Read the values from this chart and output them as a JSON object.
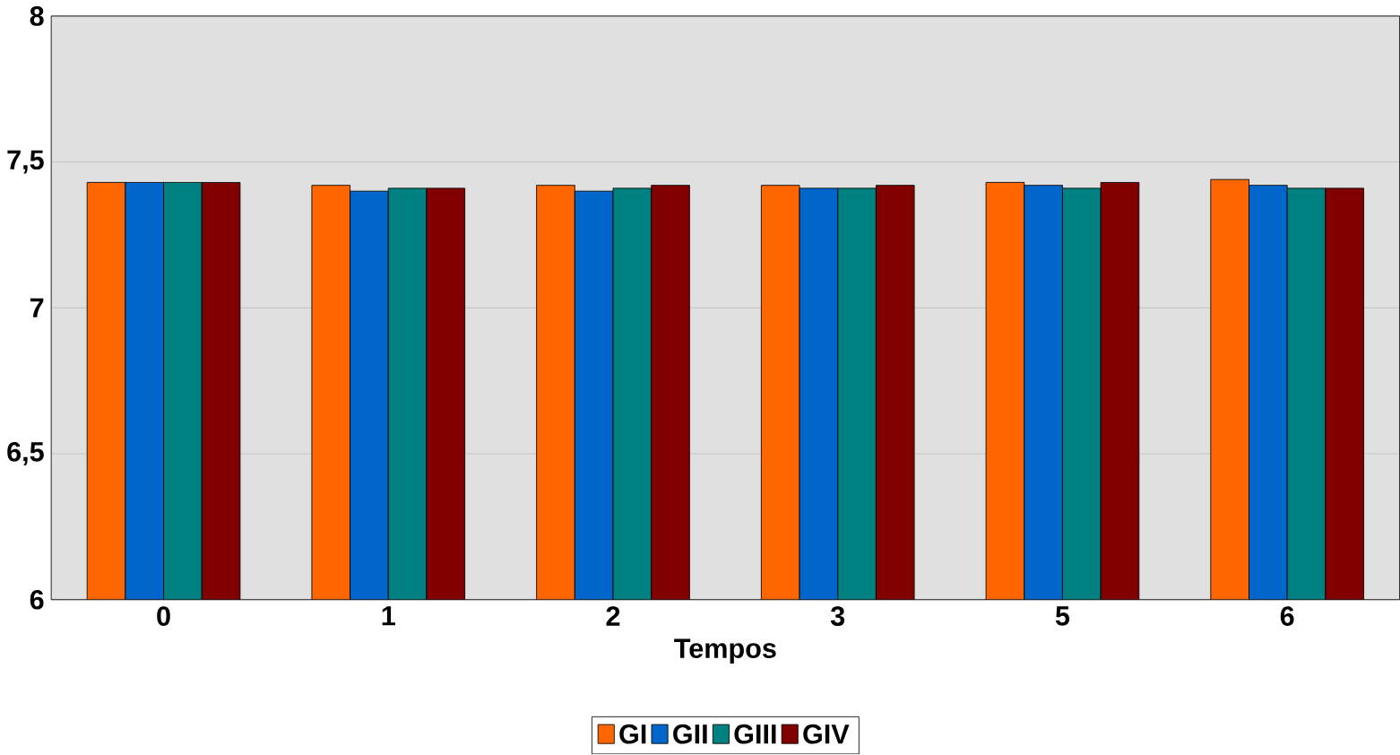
{
  "chart_data": {
    "type": "bar",
    "xlabel": "Tempos",
    "categories": [
      "0",
      "1",
      "2",
      "3",
      "5",
      "6"
    ],
    "series": [
      {
        "name": "GI",
        "color": "#ff6600",
        "values": [
          7.43,
          7.42,
          7.42,
          7.42,
          7.43,
          7.44
        ]
      },
      {
        "name": "GII",
        "color": "#0066cc",
        "values": [
          7.43,
          7.4,
          7.4,
          7.41,
          7.42,
          7.42
        ]
      },
      {
        "name": "GIII",
        "color": "#008080",
        "values": [
          7.43,
          7.41,
          7.41,
          7.41,
          7.41,
          7.41
        ]
      },
      {
        "name": "GIV",
        "color": "#800000",
        "values": [
          7.43,
          7.41,
          7.42,
          7.42,
          7.43,
          7.41
        ]
      }
    ],
    "ylim": [
      6,
      8
    ],
    "yticks": [
      6,
      {
        "value": 6.5,
        "label": "6,5"
      },
      7,
      {
        "value": 7.5,
        "label": "7,5"
      },
      8
    ],
    "grid": "y",
    "legend": "bottom"
  }
}
